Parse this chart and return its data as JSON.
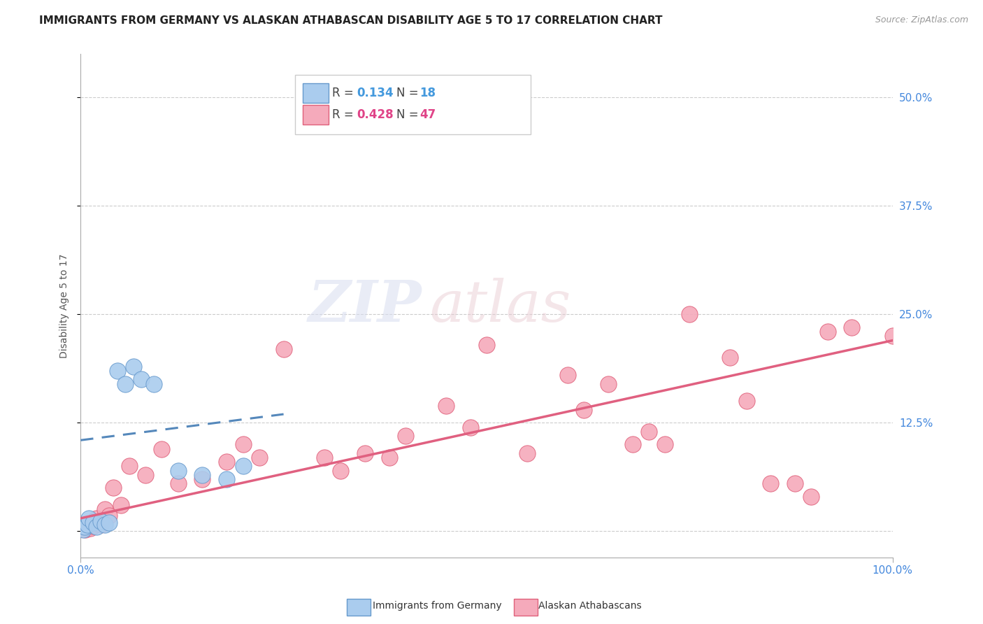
{
  "title": "IMMIGRANTS FROM GERMANY VS ALASKAN ATHABASCAN DISABILITY AGE 5 TO 17 CORRELATION CHART",
  "source": "Source: ZipAtlas.com",
  "ylabel": "Disability Age 5 to 17",
  "xlim": [
    0,
    100
  ],
  "ylim": [
    -3,
    55
  ],
  "yticks": [
    0,
    12.5,
    25,
    37.5,
    50
  ],
  "ytick_labels": [
    "",
    "12.5%",
    "25.0%",
    "37.5%",
    "50.0%"
  ],
  "xtick_labels": [
    "0.0%",
    "100.0%"
  ],
  "label_germany": "Immigrants from Germany",
  "label_athabascan": "Alaskan Athabascans",
  "color_germany": "#aaccee",
  "color_athabascan": "#f5aabb",
  "color_edge_germany": "#6699cc",
  "color_edge_athabascan": "#e0607a",
  "color_line_germany": "#5588bb",
  "color_line_athabascan": "#e06080",
  "color_r_germany": "#4499dd",
  "color_r_athabascan": "#e04488",
  "background": "#ffffff",
  "germany_x": [
    0.3,
    0.5,
    0.8,
    1.0,
    1.5,
    2.0,
    2.5,
    3.0,
    3.5,
    4.5,
    5.5,
    6.5,
    7.5,
    9.0,
    12.0,
    15.0,
    18.0,
    20.0
  ],
  "germany_y": [
    0.2,
    0.5,
    0.8,
    1.5,
    1.0,
    0.5,
    1.2,
    0.8,
    1.0,
    18.5,
    17.0,
    19.0,
    17.5,
    17.0,
    7.0,
    6.5,
    6.0,
    7.5
  ],
  "athabascan_x": [
    0.2,
    0.4,
    0.6,
    0.8,
    1.0,
    1.2,
    1.5,
    1.8,
    2.0,
    2.5,
    3.0,
    3.5,
    4.0,
    5.0,
    6.0,
    8.0,
    10.0,
    12.0,
    15.0,
    18.0,
    20.0,
    22.0,
    25.0,
    30.0,
    32.0,
    35.0,
    38.0,
    40.0,
    45.0,
    48.0,
    50.0,
    55.0,
    60.0,
    62.0,
    65.0,
    68.0,
    70.0,
    72.0,
    75.0,
    80.0,
    82.0,
    85.0,
    88.0,
    90.0,
    92.0,
    95.0,
    100.0
  ],
  "athabascan_y": [
    0.3,
    0.6,
    0.2,
    0.5,
    0.8,
    0.4,
    0.6,
    1.0,
    1.5,
    0.8,
    2.5,
    1.8,
    5.0,
    3.0,
    7.5,
    6.5,
    9.5,
    5.5,
    6.0,
    8.0,
    10.0,
    8.5,
    21.0,
    8.5,
    7.0,
    9.0,
    8.5,
    11.0,
    14.5,
    12.0,
    21.5,
    9.0,
    18.0,
    14.0,
    17.0,
    10.0,
    11.5,
    10.0,
    25.0,
    20.0,
    15.0,
    5.5,
    5.5,
    4.0,
    23.0,
    23.5,
    22.5
  ],
  "germany_line_x": [
    0,
    25
  ],
  "germany_line_y": [
    10.5,
    13.5
  ],
  "athabascan_line_x": [
    0,
    100
  ],
  "athabascan_line_y": [
    1.5,
    22.0
  ],
  "watermark_zip": "ZIP",
  "watermark_atlas": "atlas",
  "title_fontsize": 11,
  "axis_label_fontsize": 10,
  "tick_fontsize": 11,
  "legend_fontsize": 12
}
